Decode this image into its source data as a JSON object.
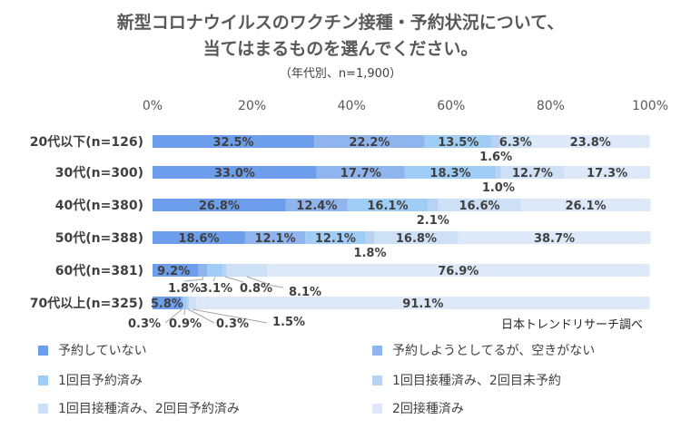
{
  "chart_data": {
    "type": "bar",
    "orientation": "horizontal",
    "stacked": true,
    "title_line1": "新型コロナウイルスのワクチン接種・予約状況について、",
    "title_line2": "当てはまるものを選んでください。",
    "subtitle": "（年代別、n=1,900）",
    "source": "日本トレンドリサーチ調べ",
    "categories": [
      "20代以下(n=126)",
      "30代(n=300)",
      "40代(n=380)",
      "50代(n=388)",
      "60代(n=381)",
      "70代以上(n=325)"
    ],
    "xlim": [
      0,
      100
    ],
    "x_ticks": [
      "0%",
      "20%",
      "40%",
      "60%",
      "80%",
      "100%"
    ],
    "series": [
      {
        "name": "予約していない",
        "color": "#6d9eeb",
        "values": [
          32.5,
          33.0,
          26.8,
          18.6,
          9.2,
          5.8
        ],
        "labels": [
          "32.5%",
          "33.0%",
          "26.8%",
          "18.6%",
          "9.2%",
          "5.8%"
        ]
      },
      {
        "name": "予約しようとしてるが、空きがない",
        "color": "#8fb4ee",
        "values": [
          22.2,
          17.7,
          12.4,
          12.1,
          1.8,
          0.3
        ],
        "labels": [
          "22.2%",
          "17.7%",
          "12.4%",
          "12.1%",
          "1.8%",
          "0.3%"
        ]
      },
      {
        "name": "1回目予約済み",
        "color": "#9fcdf5",
        "values": [
          13.5,
          18.3,
          16.1,
          12.1,
          3.1,
          0.9
        ],
        "labels": [
          "13.5%",
          "18.3%",
          "16.1%",
          "12.1%",
          "3.1%",
          "0.9%"
        ]
      },
      {
        "name": "1回目接種済み、2回目未予約",
        "color": "#b7d2f2",
        "values": [
          1.6,
          1.0,
          2.1,
          1.8,
          0.8,
          0.3
        ],
        "labels": [
          "1.6%",
          "1.0%",
          "2.1%",
          "1.8%",
          "0.8%",
          "0.3%"
        ]
      },
      {
        "name": "1回目接種済み、2回目予約済み",
        "color": "#cde0f6",
        "values": [
          6.3,
          12.7,
          16.6,
          16.8,
          8.1,
          1.5
        ],
        "labels": [
          "6.3%",
          "12.7%",
          "16.6%",
          "16.8%",
          "8.1%",
          "1.5%"
        ]
      },
      {
        "name": "2回接種済み",
        "color": "#dde9f8",
        "values": [
          23.8,
          17.3,
          26.1,
          38.7,
          76.9,
          91.1
        ],
        "labels": [
          "23.8%",
          "17.3%",
          "26.1%",
          "38.7%",
          "76.9%",
          "91.1%"
        ]
      }
    ],
    "legend_position": "bottom"
  }
}
